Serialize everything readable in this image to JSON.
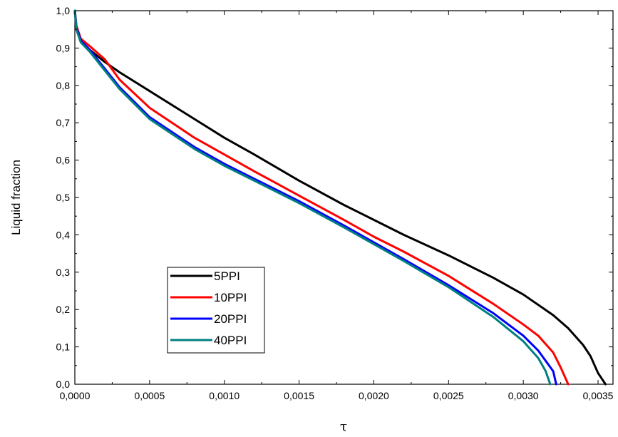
{
  "chart_data": {
    "type": "line",
    "xlabel": "τ",
    "ylabel": "Liquid fraction",
    "xlim": [
      0,
      0.0036
    ],
    "ylim": [
      0,
      1.0
    ],
    "x_ticks": [
      "0,0000",
      "0,0005",
      "0,0010",
      "0,0015",
      "0,0020",
      "0,0025",
      "0,0030",
      "0,0035"
    ],
    "y_ticks": [
      "0,0",
      "0,1",
      "0,2",
      "0,3",
      "0,4",
      "0,5",
      "0,6",
      "0,7",
      "0,8",
      "0,9",
      "1,0"
    ],
    "legend_position": "lower-left",
    "grid": false,
    "series": [
      {
        "name": "5PPI",
        "color": "#000000",
        "x": [
          0.0,
          1e-05,
          4e-05,
          0.0001,
          0.0002,
          0.0003,
          0.0005,
          0.0008,
          0.001,
          0.0012,
          0.0015,
          0.0018,
          0.002,
          0.0022,
          0.0025,
          0.0028,
          0.003,
          0.0032,
          0.0033,
          0.0034,
          0.00345,
          0.0035,
          0.00355
        ],
        "y": [
          1.0,
          0.96,
          0.92,
          0.895,
          0.863,
          0.835,
          0.785,
          0.71,
          0.66,
          0.615,
          0.545,
          0.48,
          0.44,
          0.4,
          0.345,
          0.285,
          0.24,
          0.185,
          0.15,
          0.105,
          0.075,
          0.03,
          0.0
        ]
      },
      {
        "name": "10PPI",
        "color": "#ff0000",
        "x": [
          0.0,
          1e-05,
          4e-05,
          0.0001,
          0.0002,
          0.0003,
          0.0005,
          0.0008,
          0.001,
          0.0012,
          0.0015,
          0.0018,
          0.002,
          0.0022,
          0.0025,
          0.0028,
          0.003,
          0.0031,
          0.0032,
          0.00325,
          0.0033
        ],
        "y": [
          1.0,
          0.96,
          0.925,
          0.905,
          0.87,
          0.815,
          0.74,
          0.66,
          0.615,
          0.57,
          0.505,
          0.44,
          0.395,
          0.355,
          0.29,
          0.215,
          0.16,
          0.13,
          0.085,
          0.045,
          0.0
        ]
      },
      {
        "name": "20PPI",
        "color": "#0000ff",
        "x": [
          0.0,
          1e-05,
          4e-05,
          0.0001,
          0.0002,
          0.0003,
          0.0005,
          0.0008,
          0.001,
          0.0012,
          0.0015,
          0.0018,
          0.002,
          0.0022,
          0.0025,
          0.0028,
          0.003,
          0.0031,
          0.0032,
          0.00322
        ],
        "y": [
          1.0,
          0.955,
          0.92,
          0.895,
          0.845,
          0.795,
          0.715,
          0.635,
          0.59,
          0.55,
          0.49,
          0.425,
          0.38,
          0.335,
          0.265,
          0.19,
          0.13,
          0.09,
          0.035,
          0.0
        ]
      },
      {
        "name": "40PPI",
        "color": "#008080",
        "x": [
          0.0,
          1e-05,
          4e-05,
          0.0001,
          0.0002,
          0.0003,
          0.0005,
          0.0008,
          0.001,
          0.0012,
          0.0015,
          0.0018,
          0.002,
          0.0022,
          0.0025,
          0.0028,
          0.003,
          0.0031,
          0.00315,
          0.00318
        ],
        "y": [
          1.0,
          0.95,
          0.915,
          0.89,
          0.84,
          0.79,
          0.71,
          0.63,
          0.585,
          0.545,
          0.485,
          0.42,
          0.375,
          0.33,
          0.26,
          0.18,
          0.115,
          0.07,
          0.035,
          0.0
        ]
      }
    ]
  }
}
